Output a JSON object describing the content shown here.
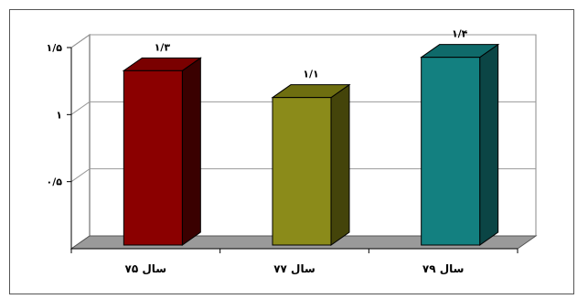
{
  "chart_data": {
    "type": "bar",
    "categories": [
      "سال ۷۵",
      "سال ۷۷",
      "سال ۷۹"
    ],
    "values": [
      1.3,
      1.1,
      1.4
    ],
    "value_labels": [
      "۱/۳",
      "۱/۱",
      "۱/۴"
    ],
    "ytick_values": [
      0.5,
      1,
      1.5
    ],
    "ytick_labels": [
      "۰/۵",
      "۱",
      "۱/۵"
    ],
    "ylim": [
      0,
      1.5
    ],
    "colors": [
      "#8b0000",
      "#8b8b1a",
      "#138080"
    ],
    "side_colors": [
      "#3a0000",
      "#44440a",
      "#0b4545"
    ],
    "top_colors": [
      "#7a0000",
      "#6e6e10",
      "#0f6a6a"
    ],
    "grid": true,
    "legend": "none",
    "style": "3d"
  }
}
